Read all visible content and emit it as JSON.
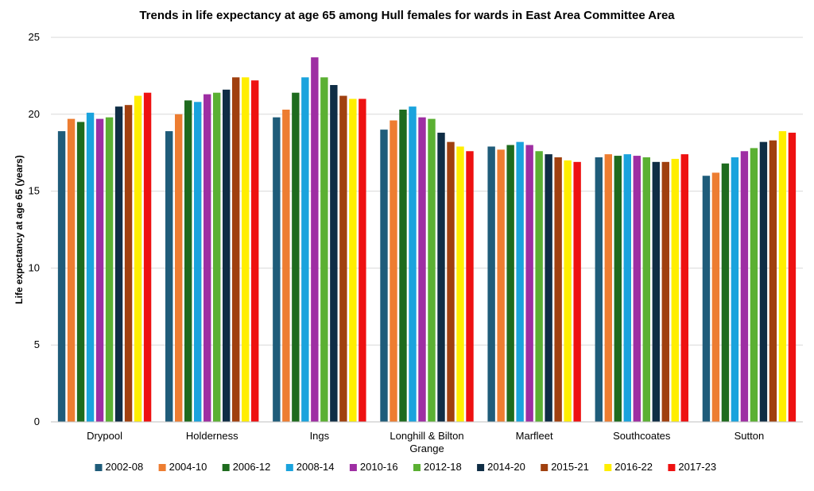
{
  "chart_data": {
    "type": "bar",
    "title": "Trends in life expectancy at age 65 among Hull females for wards in East Area Committee Area",
    "ylabel": "Life expectancy at age 65 (years)",
    "xlabel": "",
    "ylim": [
      0,
      25
    ],
    "yticks": [
      0,
      5,
      10,
      15,
      20,
      25
    ],
    "ytick_labels": [
      "0",
      "5",
      "10",
      "15",
      "20",
      "25"
    ],
    "grid": true,
    "legend_position": "bottom",
    "categories": [
      {
        "lines": [
          "Drypool"
        ]
      },
      {
        "lines": [
          "Holderness"
        ]
      },
      {
        "lines": [
          "Ings"
        ]
      },
      {
        "lines": [
          "Longhill & Bilton",
          "Grange"
        ]
      },
      {
        "lines": [
          "Marfleet"
        ]
      },
      {
        "lines": [
          "Southcoates"
        ]
      },
      {
        "lines": [
          "Sutton"
        ]
      }
    ],
    "series": [
      {
        "name": "2002-08",
        "color": "#1f5c7a",
        "values": [
          18.9,
          18.9,
          19.8,
          19.0,
          17.9,
          17.2,
          16.0
        ]
      },
      {
        "name": "2004-10",
        "color": "#ed7d31",
        "values": [
          19.7,
          20.0,
          20.3,
          19.6,
          17.7,
          17.4,
          16.2
        ]
      },
      {
        "name": "2006-12",
        "color": "#1e6b1e",
        "values": [
          19.5,
          20.9,
          21.4,
          20.3,
          18.0,
          17.3,
          16.8
        ]
      },
      {
        "name": "2008-14",
        "color": "#1aa3dd",
        "values": [
          20.1,
          20.8,
          22.4,
          20.5,
          18.2,
          17.4,
          17.2
        ]
      },
      {
        "name": "2010-16",
        "color": "#9e2ea3",
        "values": [
          19.7,
          21.3,
          23.7,
          19.8,
          18.0,
          17.3,
          17.6
        ]
      },
      {
        "name": "2012-18",
        "color": "#5bb033",
        "values": [
          19.8,
          21.4,
          22.4,
          19.7,
          17.6,
          17.2,
          17.8
        ]
      },
      {
        "name": "2014-20",
        "color": "#0f2d45",
        "values": [
          20.5,
          21.6,
          21.9,
          18.8,
          17.4,
          16.9,
          18.2
        ]
      },
      {
        "name": "2015-21",
        "color": "#a0400f",
        "values": [
          20.6,
          22.4,
          21.2,
          18.2,
          17.2,
          16.9,
          18.3
        ]
      },
      {
        "name": "2016-22",
        "color": "#ffee00",
        "values": [
          21.2,
          22.4,
          21.0,
          17.9,
          17.0,
          17.1,
          18.9
        ]
      },
      {
        "name": "2017-23",
        "color": "#ee1111",
        "values": [
          21.4,
          22.2,
          21.0,
          17.6,
          16.9,
          17.4,
          18.8
        ]
      }
    ]
  }
}
